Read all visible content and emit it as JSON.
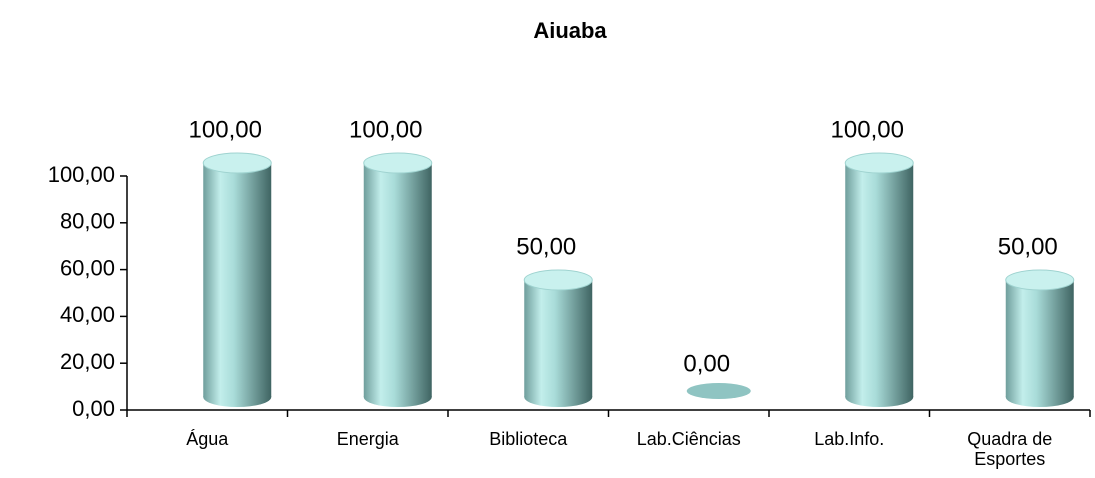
{
  "chart_data": {
    "type": "bar",
    "title": "Aiuaba",
    "categories": [
      "Água",
      "Energia",
      "Biblioteca",
      "Lab.Ciências",
      "Lab.Info.",
      "Quadra de Esportes"
    ],
    "values": [
      100,
      100,
      50,
      0,
      100,
      50
    ],
    "value_labels": [
      "100,00",
      "100,00",
      "50,00",
      "0,00",
      "100,00",
      "50,00"
    ],
    "color": "#8fc4c2",
    "ylim": [
      0,
      100
    ],
    "yticks": [
      {
        "value": 0,
        "label": "0,00"
      },
      {
        "value": 20,
        "label": "20,00"
      },
      {
        "value": 40,
        "label": "40,00"
      },
      {
        "value": 60,
        "label": "60,00"
      },
      {
        "value": 80,
        "label": "80,00"
      },
      {
        "value": 100,
        "label": "100,00"
      }
    ]
  }
}
